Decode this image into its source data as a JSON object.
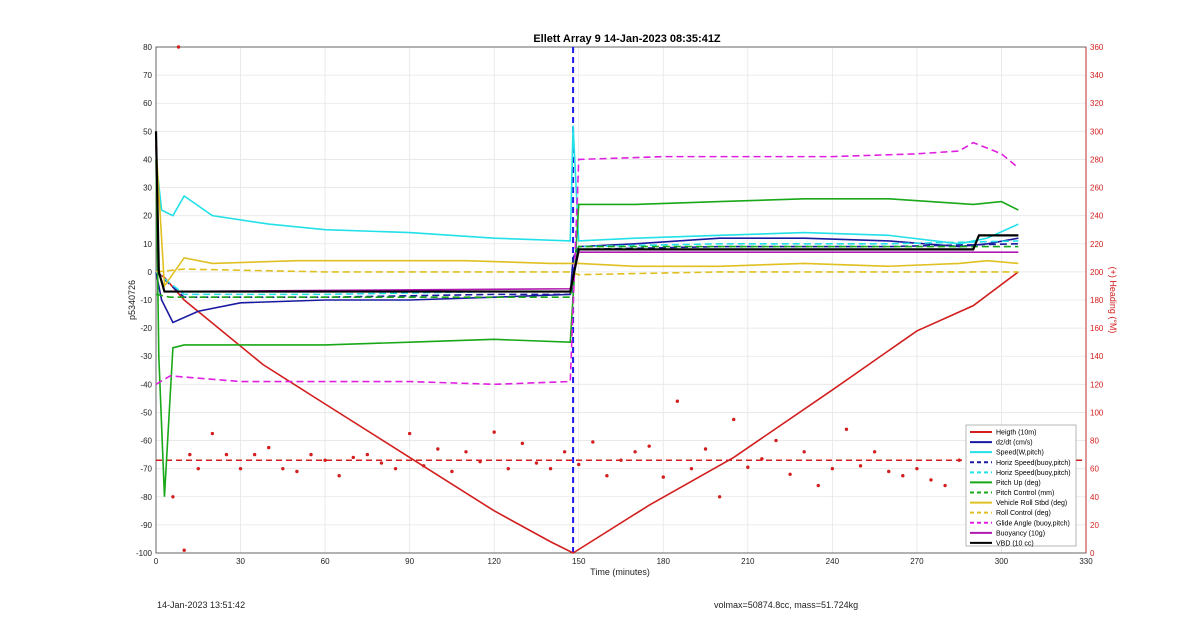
{
  "chart_data": {
    "type": "line",
    "title": "Ellett Array 9 14-Jan-2023 08:35:41Z",
    "xlabel": "Time (minutes)",
    "ylabel": "p5340726",
    "ylabel_right": "(+) Heading (°M)",
    "xlim": [
      0,
      330
    ],
    "ylim": [
      -100,
      80
    ],
    "ylim_right": [
      0,
      360
    ],
    "xticks": [
      "0",
      "30",
      "60",
      "90",
      "120",
      "150",
      "180",
      "210",
      "240",
      "270",
      "300",
      "330"
    ],
    "yticks": [
      "-100",
      "-90",
      "-80",
      "-70",
      "-60",
      "-50",
      "-40",
      "-30",
      "-20",
      "-10",
      "0",
      "10",
      "20",
      "30",
      "40",
      "50",
      "60",
      "70",
      "80"
    ],
    "yticks_right": [
      "0",
      "20",
      "40",
      "60",
      "80",
      "100",
      "120",
      "140",
      "160",
      "180",
      "200",
      "220",
      "240",
      "260",
      "280",
      "300",
      "320",
      "340",
      "360"
    ],
    "grid": true,
    "legend_position": "bottom-right",
    "inflection_x": 148,
    "mean_heading": 66,
    "series": [
      {
        "name": "Heigth (10m)",
        "color": "#d21e1e",
        "style": "solid",
        "x": [
          0,
          3,
          10,
          38,
          60,
          90,
          120,
          140,
          148,
          175,
          205,
          240,
          270,
          290,
          306
        ],
        "y": [
          0,
          -2,
          -10,
          -33,
          -47,
          -66,
          -85,
          -96,
          -100,
          -83,
          -66,
          -42,
          -21,
          -12,
          0
        ]
      },
      {
        "name": "dz/dt (cm/s)",
        "color": "#1a1aa0",
        "style": "solid",
        "x": [
          0,
          2,
          6,
          15,
          30,
          60,
          90,
          120,
          147,
          148,
          150,
          170,
          200,
          230,
          260,
          285,
          295,
          306
        ],
        "y": [
          0,
          -10,
          -18,
          -14,
          -11,
          -10,
          -10,
          -9,
          -8,
          5,
          9,
          10,
          12,
          12,
          11,
          9,
          10,
          12
        ]
      },
      {
        "name": "Speed(W,pitch)",
        "color": "#22e0e8",
        "style": "solid",
        "x": [
          0,
          2,
          6,
          10,
          20,
          40,
          60,
          90,
          120,
          147,
          148,
          150,
          170,
          200,
          230,
          260,
          285,
          295,
          306
        ],
        "y": [
          40,
          22,
          20,
          27,
          20,
          17,
          15,
          14,
          12,
          11,
          52,
          11,
          12,
          13,
          14,
          13,
          10,
          12,
          17
        ]
      },
      {
        "name": "Horiz Speed(buoy,pitch)",
        "color": "#1a1aa0",
        "style": "dashed",
        "x": [
          0,
          10,
          60,
          120,
          147,
          150,
          200,
          260,
          306
        ],
        "y": [
          0,
          -9,
          -9,
          -8,
          -8,
          8,
          9,
          9,
          10
        ]
      },
      {
        "name": "Horiz Speed(buoy,pitch)",
        "color": "#22e0e8",
        "style": "dashed",
        "x": [
          0,
          10,
          60,
          120,
          147,
          150,
          200,
          260,
          306
        ],
        "y": [
          0,
          -8,
          -8,
          -7,
          -7,
          9,
          10,
          10,
          11
        ]
      },
      {
        "name": "Pitch Up (deg)",
        "color": "#18a818",
        "style": "solid",
        "x": [
          0,
          1,
          3,
          6,
          10,
          20,
          60,
          90,
          120,
          147,
          150,
          170,
          200,
          230,
          260,
          290,
          300,
          306
        ],
        "y": [
          40,
          -30,
          -80,
          -27,
          -26,
          -26,
          -26,
          -25,
          -24,
          -25,
          24,
          24,
          25,
          26,
          26,
          24,
          25,
          22
        ]
      },
      {
        "name": "Pitch Control (mm)",
        "color": "#18a818",
        "style": "dashed",
        "x": [
          0,
          5,
          147,
          150,
          306
        ],
        "y": [
          -8,
          -9,
          -9,
          9,
          9
        ]
      },
      {
        "name": "Vehicle Roll Stbd (deg)",
        "color": "#e0c020",
        "style": "solid",
        "x": [
          0,
          3,
          10,
          20,
          50,
          80,
          110,
          140,
          147,
          150,
          170,
          200,
          230,
          260,
          285,
          295,
          306
        ],
        "y": [
          45,
          -5,
          5,
          3,
          4,
          4,
          4,
          3,
          3,
          3,
          2,
          2,
          3,
          2,
          3,
          4,
          3
        ]
      },
      {
        "name": "Roll Control (deg)",
        "color": "#e0c020",
        "style": "dashed",
        "x": [
          0,
          10,
          60,
          120,
          147,
          150,
          200,
          260,
          306
        ],
        "y": [
          0,
          1,
          0,
          0,
          0,
          -1,
          0,
          0,
          0
        ]
      },
      {
        "name": "Glide Angle (buoy,pitch)",
        "color": "#e020e0",
        "style": "dashed",
        "x": [
          0,
          5,
          30,
          60,
          90,
          120,
          147,
          150,
          180,
          210,
          240,
          270,
          285,
          290,
          300,
          306
        ],
        "y": [
          -40,
          -37,
          -39,
          -39,
          -39,
          -40,
          -39,
          40,
          41,
          41,
          41,
          42,
          43,
          46,
          42,
          37
        ]
      },
      {
        "name": "Buoyancy (10g)",
        "color": "#b018b0",
        "style": "solid",
        "x": [
          0,
          1,
          3,
          147,
          150,
          306
        ],
        "y": [
          45,
          0,
          -7,
          -6,
          7,
          7
        ]
      },
      {
        "name": "VBD (10 cc)",
        "color": "#000000",
        "style": "solid",
        "x": [
          0,
          1,
          3,
          147,
          150,
          290,
          292,
          306
        ],
        "y": [
          50,
          0,
          -7,
          -7,
          8,
          8,
          13,
          13
        ]
      }
    ],
    "heading_points": {
      "name": "Heading",
      "color": "#d21e1e",
      "x": [
        6,
        8,
        10,
        12,
        15,
        20,
        25,
        30,
        35,
        40,
        45,
        50,
        55,
        60,
        65,
        70,
        75,
        80,
        85,
        90,
        95,
        100,
        105,
        110,
        115,
        120,
        125,
        130,
        135,
        140,
        145,
        150,
        155,
        160,
        165,
        170,
        175,
        180,
        185,
        190,
        195,
        200,
        205,
        210,
        215,
        220,
        225,
        230,
        235,
        240,
        245,
        250,
        255,
        260,
        265,
        270,
        275,
        280,
        285,
        290,
        295,
        300,
        305
      ],
      "y": [
        40,
        360,
        2,
        70,
        60,
        85,
        70,
        60,
        70,
        75,
        60,
        58,
        70,
        66,
        55,
        68,
        70,
        64,
        60,
        85,
        62,
        74,
        58,
        72,
        65,
        86,
        60,
        78,
        64,
        60,
        72,
        63,
        79,
        55,
        66,
        72,
        76,
        54,
        108,
        60,
        74,
        40,
        95,
        61,
        67,
        80,
        56,
        72,
        48,
        60,
        88,
        62,
        72,
        58,
        55,
        60,
        52,
        48,
        66,
        70,
        80,
        75,
        62
      ]
    },
    "heading_mean_label": "",
    "legend": [
      "Heigth (10m)",
      "dz/dt (cm/s)",
      "Speed(W,pitch)",
      "Horiz Speed(buoy,pitch)",
      "Horiz Speed(buoy,pitch)",
      "Pitch Up (deg)",
      "Pitch Control (mm)",
      "Vehicle Roll Stbd (deg)",
      "Roll Control (deg)",
      "Glide Angle (buoy,pitch)",
      "Buoyancy (10g)",
      "VBD (10 cc)"
    ]
  },
  "footer": {
    "timestamp": "14-Jan-2023 13:51:42",
    "volmax": "volmax=50874.8cc, mass=51.724kg"
  }
}
